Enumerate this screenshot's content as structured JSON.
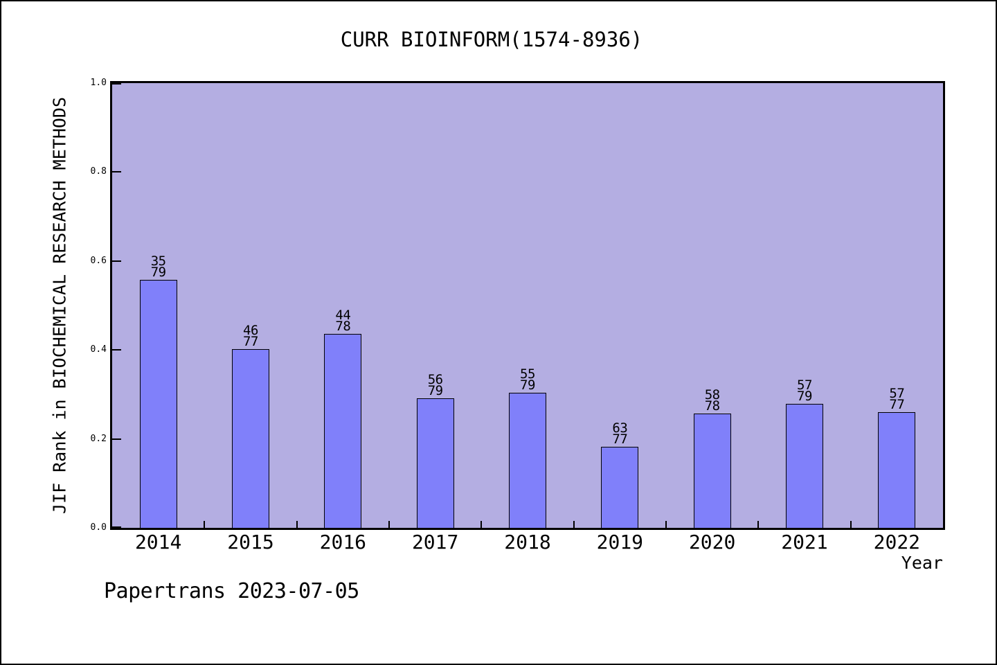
{
  "page": {
    "footer": "Papertrans 2023-07-05"
  },
  "chart_data": {
    "type": "bar",
    "title": "CURR BIOINFORM(1574-8936)",
    "xlabel": "Year",
    "ylabel": "JIF Rank in BIOCHEMICAL RESEARCH METHODS",
    "categories": [
      "2014",
      "2015",
      "2016",
      "2017",
      "2018",
      "2019",
      "2020",
      "2021",
      "2022"
    ],
    "bars": [
      {
        "year": "2014",
        "rank": 35,
        "total": 79,
        "value": 0.557
      },
      {
        "year": "2015",
        "rank": 46,
        "total": 77,
        "value": 0.4026
      },
      {
        "year": "2016",
        "rank": 44,
        "total": 78,
        "value": 0.4359
      },
      {
        "year": "2017",
        "rank": 56,
        "total": 79,
        "value": 0.2911
      },
      {
        "year": "2018",
        "rank": 55,
        "total": 79,
        "value": 0.3038
      },
      {
        "year": "2019",
        "rank": 63,
        "total": 77,
        "value": 0.1818
      },
      {
        "year": "2020",
        "rank": 58,
        "total": 78,
        "value": 0.2564
      },
      {
        "year": "2021",
        "rank": 57,
        "total": 79,
        "value": 0.2785
      },
      {
        "year": "2022",
        "rank": 57,
        "total": 77,
        "value": 0.2597
      }
    ],
    "ylim": [
      0.0,
      1.0
    ],
    "yticks": [
      "0.0",
      "0.2",
      "0.4",
      "0.6",
      "0.8",
      "1.0"
    ],
    "legend": null,
    "grid": false,
    "colors": {
      "plot_bg": "#b4aee2",
      "bar_fill": "#8080fa",
      "bar_border": "#000000",
      "text": "#000000"
    }
  }
}
